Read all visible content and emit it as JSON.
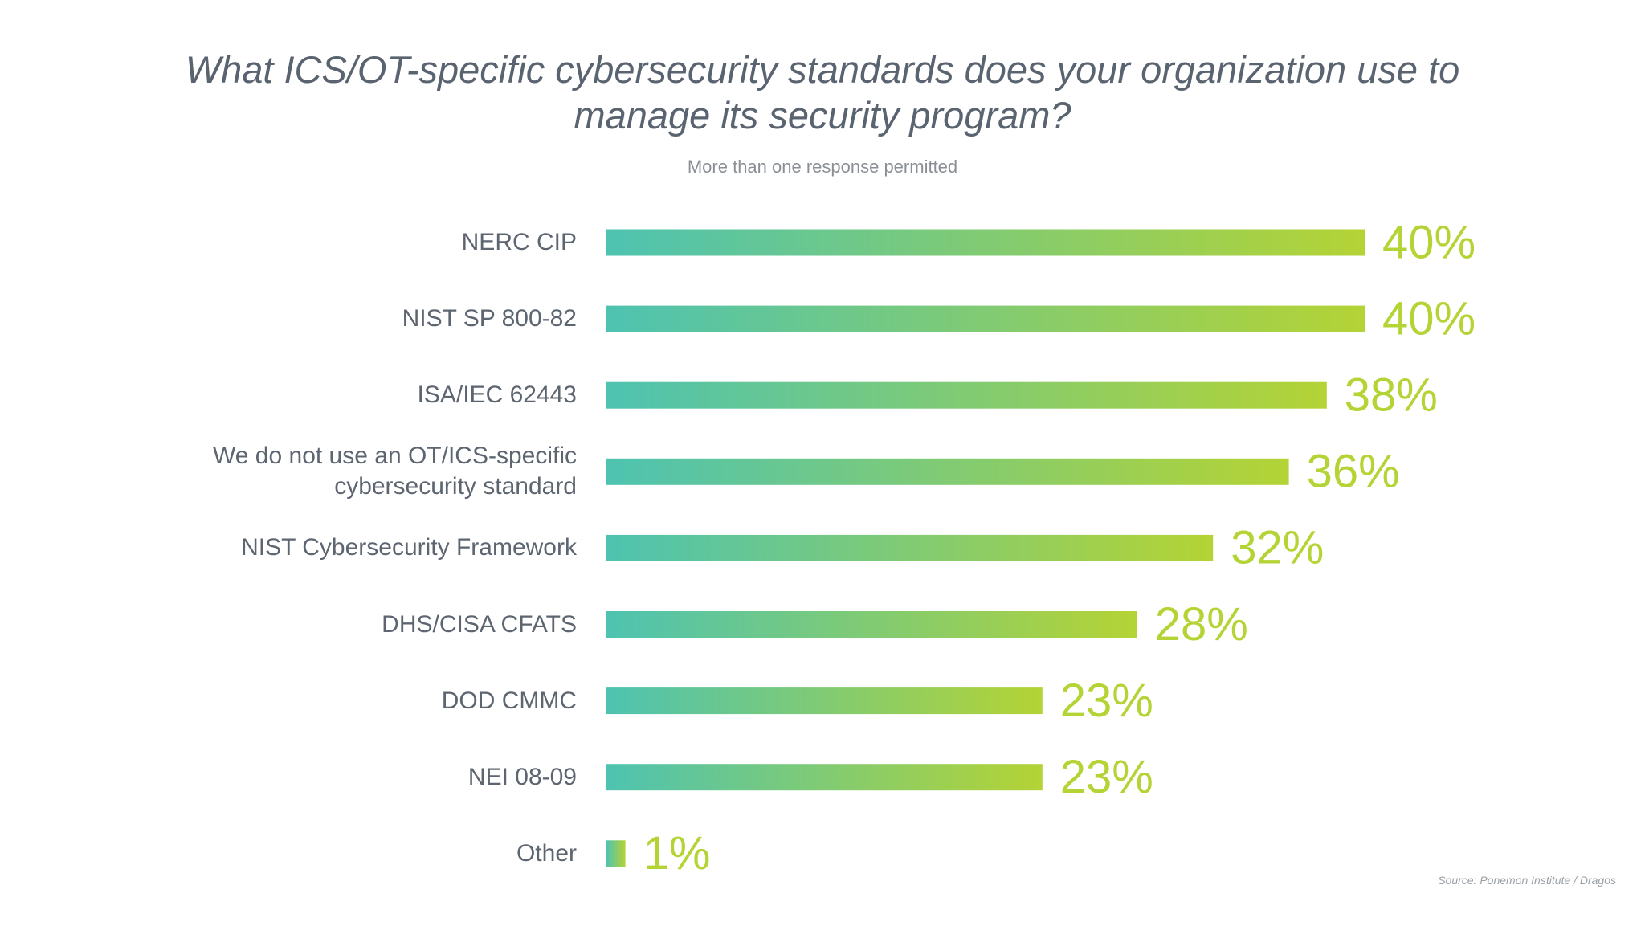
{
  "chart_data": {
    "type": "bar",
    "orientation": "horizontal",
    "title": "What ICS/OT-specific cybersecurity standards does your organization use to manage its security program?",
    "subtitle": "More than one response permitted",
    "source": "Source: Ponemon Institute / Dragos",
    "categories": [
      "NERC CIP",
      "NIST SP 800-82",
      "ISA/IEC 62443",
      "We do not use an OT/ICS-specific cybersecurity standard",
      "NIST Cybersecurity Framework",
      "DHS/CISA CFATS",
      "DOD CMMC",
      "NEI 08-09",
      "Other"
    ],
    "values": [
      40,
      40,
      38,
      36,
      32,
      28,
      23,
      23,
      1
    ],
    "value_labels": [
      "40%",
      "40%",
      "38%",
      "36%",
      "32%",
      "28%",
      "23%",
      "23%",
      "1%"
    ],
    "gradient": [
      "#4ec3b1",
      "#b4d335"
    ]
  }
}
